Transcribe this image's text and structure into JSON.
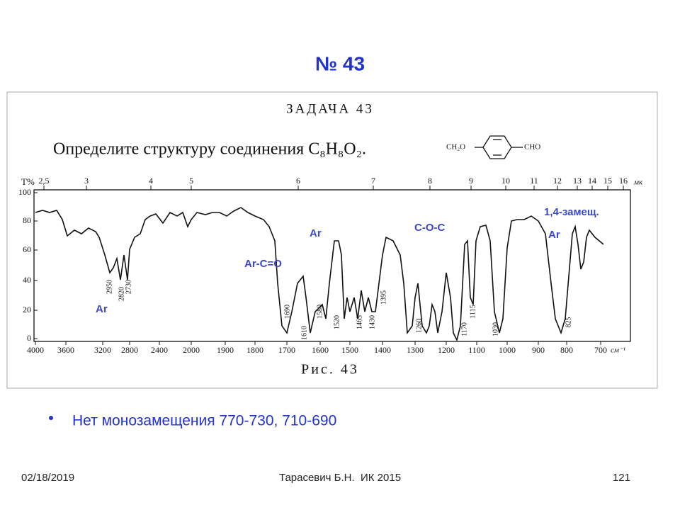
{
  "header": {
    "title": "№ 43"
  },
  "figure": {
    "heading": "ЗАДАЧА 43",
    "task": "Определите структуру соединения C₈H₈O₂.",
    "structure": {
      "left": "CH₂O",
      "right": "CHO"
    },
    "y_axis_label": "T%",
    "top_axis_unit": "мк",
    "bottom_axis_unit": "см⁻¹",
    "top_ticks": [
      "2,5",
      "3",
      "4",
      "5",
      "6",
      "7",
      "8",
      "9",
      "10",
      "11",
      "12",
      "13",
      "14",
      "15",
      "16"
    ],
    "left_ticks": [
      "100",
      "80",
      "60",
      "40",
      "20",
      "0"
    ],
    "bottom_ticks": [
      "4000",
      "3600",
      "3200",
      "2800",
      "2400",
      "2000",
      "1900",
      "1800",
      "1700",
      "1600",
      "1500",
      "1400",
      "1300",
      "1200",
      "1100",
      "1000",
      "900",
      "800",
      "700"
    ],
    "peak_labels": [
      "2950",
      "2820",
      "2730",
      "1690",
      "1610",
      "1580",
      "1520",
      "1465",
      "1430",
      "1395",
      "1260",
      "1170",
      "1115",
      "1030",
      "825"
    ],
    "caption": "Рис. 43",
    "annotations": [
      "Ar",
      "Ar-C=O",
      "Ar",
      "C-O-C",
      "1,4-замещ.",
      "Ar"
    ]
  },
  "bullet": "Нет монозамещения 770-730, 710-690",
  "footer": {
    "date": "02/18/2019",
    "author": "Тарасевич Б.Н.  ИК 2015",
    "page": "121"
  }
}
